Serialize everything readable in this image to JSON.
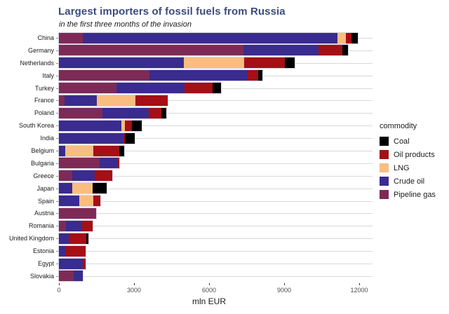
{
  "header": {
    "title": "Largest importers of fossil fuels from Russia",
    "subtitle": "in the first three months of the invasion"
  },
  "chart_data": {
    "type": "bar",
    "orientation": "horizontal",
    "stacked": true,
    "title": "Largest importers of fossil fuels from Russia",
    "subtitle": "in the first three months of the invasion",
    "xlabel": "mln EUR",
    "xlim": [
      0,
      12000
    ],
    "x_ticks": [
      0,
      3000,
      6000,
      9000,
      12000
    ],
    "grid": "horizontal-light-gray",
    "categories": [
      "China",
      "Germany",
      "Netherlands",
      "Italy",
      "Turkey",
      "France",
      "Poland",
      "South Korea",
      "India",
      "Belgium",
      "Bulgaria",
      "Greece",
      "Japan",
      "Spain",
      "Austria",
      "Romania",
      "United Kingdom",
      "Estonia",
      "Egypt",
      "Slovakia"
    ],
    "series": [
      {
        "name": "Pipeline gas",
        "color": "#7D2B56",
        "values": [
          950,
          7370,
          0,
          3620,
          2300,
          225,
          1740,
          0,
          0,
          0,
          1630,
          530,
          0,
          0,
          1490,
          280,
          0,
          0,
          0,
          590
        ]
      },
      {
        "name": "Crude oil",
        "color": "#3A2B8E",
        "values": [
          10180,
          3000,
          4990,
          3925,
          2720,
          1290,
          1850,
          2500,
          2580,
          250,
          700,
          900,
          530,
          810,
          0,
          645,
          390,
          250,
          950,
          365
        ]
      },
      {
        "name": "LNG",
        "color": "#F9BD7F",
        "values": [
          340,
          0,
          2410,
          0,
          0,
          1540,
          0,
          140,
          0,
          1120,
          0,
          0,
          810,
          560,
          0,
          0,
          0,
          0,
          0,
          0
        ]
      },
      {
        "name": "Oil products",
        "color": "#A50F15",
        "values": [
          225,
          950,
          1630,
          420,
          1120,
          1290,
          505,
          280,
          60,
          1040,
          85,
          700,
          0,
          280,
          0,
          420,
          700,
          815,
          110,
          0
        ]
      },
      {
        "name": "Coal",
        "color": "#000000",
        "values": [
          250,
          225,
          390,
          170,
          340,
          0,
          195,
          390,
          390,
          195,
          0,
          0,
          560,
          0,
          0,
          0,
          85,
          0,
          0,
          0
        ]
      }
    ],
    "legend": {
      "title": "commodity",
      "position": "right",
      "items": [
        "Coal",
        "Oil products",
        "LNG",
        "Crude oil",
        "Pipeline gas"
      ]
    },
    "colors": {
      "title_text": "#3C4C7C",
      "gridline": "#d9d9d9",
      "axis_text": "#4d4d4d"
    }
  }
}
